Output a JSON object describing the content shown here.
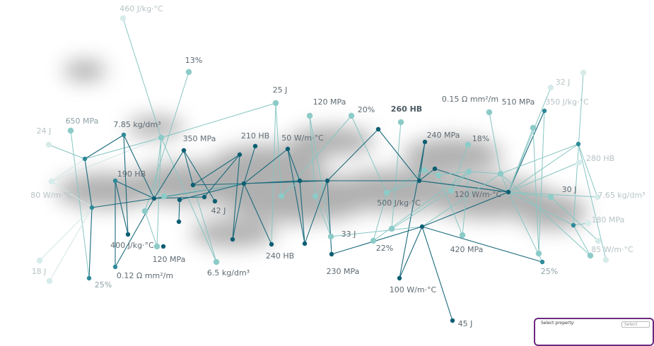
{
  "nodes": [
    {
      "id": "n1",
      "label": "460 J/kg·°C",
      "tone": "faint"
    },
    {
      "id": "n2",
      "label": "13%",
      "tone": "dark"
    },
    {
      "id": "n3",
      "label": "25 J",
      "tone": "dark"
    },
    {
      "id": "n4",
      "label": "120 MPa",
      "tone": "dark"
    },
    {
      "id": "n5",
      "label": "20%",
      "tone": "dark"
    },
    {
      "id": "n6",
      "label": "260 HB",
      "tone": "bold"
    },
    {
      "id": "n7",
      "label": "0.15 Ω mm²/m",
      "tone": "dark"
    },
    {
      "id": "n8",
      "label": "510 MPa",
      "tone": "dark"
    },
    {
      "id": "n9",
      "label": "350 J/kg·°C",
      "tone": "faint"
    },
    {
      "id": "n10",
      "label": "32 J",
      "tone": "faint"
    },
    {
      "id": "n11",
      "label": "650 MPa",
      "tone": "mid"
    },
    {
      "id": "n12",
      "label": "7.85 kg/dm³",
      "tone": "dark"
    },
    {
      "id": "n13",
      "label": "24 J",
      "tone": "faint"
    },
    {
      "id": "n14",
      "label": "350 MPa",
      "tone": "dark"
    },
    {
      "id": "n15",
      "label": "210 HB",
      "tone": "dark"
    },
    {
      "id": "n16",
      "label": "50 W/m·°C",
      "tone": "dark"
    },
    {
      "id": "n17",
      "label": "240 MPa",
      "tone": "dark"
    },
    {
      "id": "n18",
      "label": "18%",
      "tone": "dark"
    },
    {
      "id": "n19",
      "label": "190 HB",
      "tone": "dark"
    },
    {
      "id": "n20",
      "label": "280 HB",
      "tone": "faint"
    },
    {
      "id": "n21",
      "label": "80 W/m·°C",
      "tone": "faint"
    },
    {
      "id": "n22",
      "label": "120 W/m·°C",
      "tone": "dark"
    },
    {
      "id": "n23",
      "label": "30 J",
      "tone": "dark"
    },
    {
      "id": "n24",
      "label": "7.65 kg/dm³",
      "tone": "faint"
    },
    {
      "id": "n25",
      "label": "42 J",
      "tone": "dark"
    },
    {
      "id": "n26",
      "label": "500 J/kg·°C",
      "tone": "dark"
    },
    {
      "id": "n27",
      "label": "180 MPa",
      "tone": "faint"
    },
    {
      "id": "n28",
      "label": "33 J",
      "tone": "dark"
    },
    {
      "id": "n29",
      "label": "400 J/kg·°C",
      "tone": "dark"
    },
    {
      "id": "n30",
      "label": "22%",
      "tone": "dark"
    },
    {
      "id": "n31",
      "label": "420 MPa",
      "tone": "dark"
    },
    {
      "id": "n32",
      "label": "85 W/m·°C",
      "tone": "faint"
    },
    {
      "id": "n33",
      "label": "240 HB",
      "tone": "dark"
    },
    {
      "id": "n34",
      "label": "120 MPa",
      "tone": "dark"
    },
    {
      "id": "n35",
      "label": "18 J",
      "tone": "faint"
    },
    {
      "id": "n36",
      "label": "0.12 Ω mm²/m",
      "tone": "dark"
    },
    {
      "id": "n37",
      "label": "6.5 kg/dm³",
      "tone": "dark"
    },
    {
      "id": "n38",
      "label": "25%",
      "tone": "mid"
    },
    {
      "id": "n39",
      "label": "230 MPa",
      "tone": "dark"
    },
    {
      "id": "n40",
      "label": "25%",
      "tone": "mid"
    },
    {
      "id": "n41",
      "label": "100 W/m·°C",
      "tone": "dark"
    },
    {
      "id": "n42",
      "label": "45 J",
      "tone": "dark"
    }
  ],
  "colors": {
    "dark_node": "#0d5e72",
    "mid_node": "#2e8a99",
    "light_node": "#8ccbc8",
    "faint_node": "#d6ecea",
    "dark_edge": "#1a6a7c",
    "light_edge": "#86c6c2"
  },
  "widget": {
    "label": "Select property:",
    "select_value": "Select"
  }
}
